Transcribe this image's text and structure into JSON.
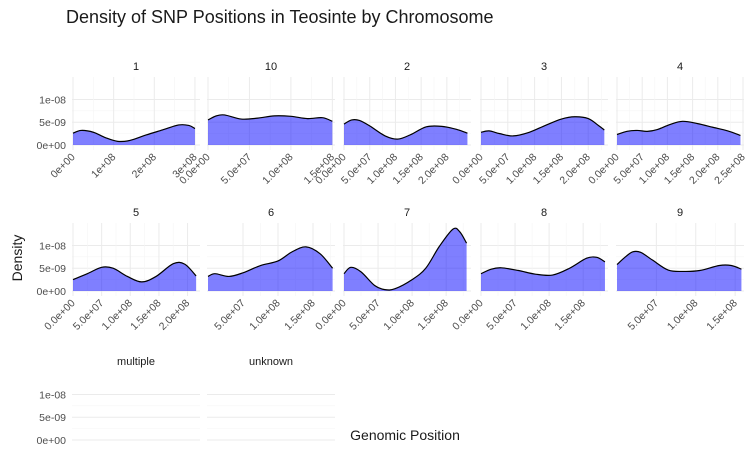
{
  "chart_data": {
    "type": "area",
    "title": "Density of SNP Positions in Teosinte by Chromosome",
    "xlabel": "Genomic Position",
    "ylabel": "Density",
    "ylim": [
      0,
      1.45e-08
    ],
    "y_ticks": [
      {
        "value": 0,
        "label": "0e+00"
      },
      {
        "value": 5e-09,
        "label": "5e-09"
      },
      {
        "value": 1e-08,
        "label": "1e-08"
      }
    ],
    "fill_color": "#0000ff",
    "line_color": "#000000",
    "grid": true,
    "legend": "none",
    "facets": [
      {
        "label": "1",
        "xlim": [
          0,
          310000000.0
        ],
        "x_ticks": [
          {
            "value": 0,
            "label": "0e+00"
          },
          {
            "value": 100000000.0,
            "label": "1e+08"
          },
          {
            "value": 200000000.0,
            "label": "2e+08"
          },
          {
            "value": 300000000.0,
            "label": "3e+08"
          }
        ],
        "points": [
          [
            0,
            2.6e-09
          ],
          [
            20000000.0,
            3.2e-09
          ],
          [
            50000000.0,
            2.8e-09
          ],
          [
            80000000.0,
            1.6e-09
          ],
          [
            110000000.0,
            8e-10
          ],
          [
            140000000.0,
            1e-09
          ],
          [
            180000000.0,
            2.2e-09
          ],
          [
            220000000.0,
            3.3e-09
          ],
          [
            260000000.0,
            4.4e-09
          ],
          [
            285000000.0,
            4.3e-09
          ],
          [
            300000000.0,
            3.6e-09
          ]
        ]
      },
      {
        "label": "10",
        "xlim": [
          0,
          152000000.0
        ],
        "x_ticks": [
          {
            "value": 0,
            "label": "0.0e+00"
          },
          {
            "value": 50000000.0,
            "label": "5.0e+07"
          },
          {
            "value": 100000000.0,
            "label": "1.0e+08"
          },
          {
            "value": 150000000.0,
            "label": "1.5e+08"
          }
        ],
        "points": [
          [
            0,
            5.5e-09
          ],
          [
            10000000.0,
            6.4e-09
          ],
          [
            20000000.0,
            6.6e-09
          ],
          [
            40000000.0,
            5.7e-09
          ],
          [
            60000000.0,
            5.9e-09
          ],
          [
            80000000.0,
            6.4e-09
          ],
          [
            100000000.0,
            6.3e-09
          ],
          [
            120000000.0,
            5.8e-09
          ],
          [
            138000000.0,
            6e-09
          ],
          [
            150000000.0,
            5.2e-09
          ]
        ]
      },
      {
        "label": "2",
        "xlim": [
          0,
          245000000.0
        ],
        "x_ticks": [
          {
            "value": 0,
            "label": "0.0e+00"
          },
          {
            "value": 50000000.0,
            "label": "5.0e+07"
          },
          {
            "value": 100000000.0,
            "label": "1.0e+08"
          },
          {
            "value": 150000000.0,
            "label": "1.5e+08"
          },
          {
            "value": 200000000.0,
            "label": "2.0e+08"
          }
        ],
        "points": [
          [
            0,
            4.6e-09
          ],
          [
            15000000.0,
            5.5e-09
          ],
          [
            30000000.0,
            5.4e-09
          ],
          [
            50000000.0,
            4.2e-09
          ],
          [
            80000000.0,
            2e-09
          ],
          [
            105000000.0,
            1.3e-09
          ],
          [
            130000000.0,
            2.3e-09
          ],
          [
            160000000.0,
            4e-09
          ],
          [
            190000000.0,
            4.1e-09
          ],
          [
            220000000.0,
            3.4e-09
          ],
          [
            240000000.0,
            2.6e-09
          ]
        ]
      },
      {
        "label": "3",
        "xlim": [
          0,
          235000000.0
        ],
        "x_ticks": [
          {
            "value": 0,
            "label": "0.0e+00"
          },
          {
            "value": 50000000.0,
            "label": "5.0e+07"
          },
          {
            "value": 100000000.0,
            "label": "1.0e+08"
          },
          {
            "value": 150000000.0,
            "label": "1.5e+08"
          },
          {
            "value": 200000000.0,
            "label": "2.0e+08"
          }
        ],
        "points": [
          [
            0,
            2.8e-09
          ],
          [
            15000000.0,
            3.1e-09
          ],
          [
            35000000.0,
            2.5e-09
          ],
          [
            60000000.0,
            2e-09
          ],
          [
            90000000.0,
            2.8e-09
          ],
          [
            120000000.0,
            4.3e-09
          ],
          [
            150000000.0,
            5.7e-09
          ],
          [
            175000000.0,
            6.2e-09
          ],
          [
            200000000.0,
            5.8e-09
          ],
          [
            220000000.0,
            4.2e-09
          ],
          [
            230000000.0,
            3.3e-09
          ]
        ]
      },
      {
        "label": "4",
        "xlim": [
          0,
          250000000.0
        ],
        "x_ticks": [
          {
            "value": 0,
            "label": "0.0e+00"
          },
          {
            "value": 50000000.0,
            "label": "5.0e+07"
          },
          {
            "value": 100000000.0,
            "label": "1.0e+08"
          },
          {
            "value": 150000000.0,
            "label": "1.5e+08"
          },
          {
            "value": 200000000.0,
            "label": "2.0e+08"
          },
          {
            "value": 250000000.0,
            "label": "2.5e+08"
          }
        ],
        "points": [
          [
            0,
            2.3e-09
          ],
          [
            20000000.0,
            3e-09
          ],
          [
            40000000.0,
            3.2e-09
          ],
          [
            60000000.0,
            3e-09
          ],
          [
            80000000.0,
            3.4e-09
          ],
          [
            105000000.0,
            4.5e-09
          ],
          [
            130000000.0,
            5.2e-09
          ],
          [
            160000000.0,
            4.7e-09
          ],
          [
            190000000.0,
            3.9e-09
          ],
          [
            220000000.0,
            3.1e-09
          ],
          [
            245000000.0,
            2.1e-09
          ]
        ]
      },
      {
        "label": "5",
        "xlim": [
          0,
          220000000.0
        ],
        "x_ticks": [
          {
            "value": 0,
            "label": "0.0e+00"
          },
          {
            "value": 50000000.0,
            "label": "5.0e+07"
          },
          {
            "value": 100000000.0,
            "label": "1.0e+08"
          },
          {
            "value": 150000000.0,
            "label": "1.5e+08"
          },
          {
            "value": 200000000.0,
            "label": "2.0e+08"
          }
        ],
        "points": [
          [
            0,
            2.5e-09
          ],
          [
            25000000.0,
            3.8e-09
          ],
          [
            50000000.0,
            5.2e-09
          ],
          [
            70000000.0,
            5e-09
          ],
          [
            95000000.0,
            3.2e-09
          ],
          [
            120000000.0,
            2e-09
          ],
          [
            145000000.0,
            3.2e-09
          ],
          [
            175000000.0,
            6e-09
          ],
          [
            195000000.0,
            5.9e-09
          ],
          [
            215000000.0,
            3.3e-09
          ]
        ]
      },
      {
        "label": "6",
        "xlim": [
          0,
          180000000.0
        ],
        "x_ticks": [
          {
            "value": 50000000.0,
            "label": "5.0e+07"
          },
          {
            "value": 100000000.0,
            "label": "1.0e+08"
          },
          {
            "value": 150000000.0,
            "label": "1.5e+08"
          }
        ],
        "points": [
          [
            0,
            3.2e-09
          ],
          [
            10000000.0,
            3.8e-09
          ],
          [
            30000000.0,
            3.2e-09
          ],
          [
            50000000.0,
            4e-09
          ],
          [
            75000000.0,
            5.6e-09
          ],
          [
            100000000.0,
            6.6e-09
          ],
          [
            120000000.0,
            8.6e-09
          ],
          [
            140000000.0,
            9.7e-09
          ],
          [
            160000000.0,
            8.2e-09
          ],
          [
            178000000.0,
            5e-09
          ]
        ]
      },
      {
        "label": "7",
        "xlim": [
          0,
          185000000.0
        ],
        "x_ticks": [
          {
            "value": 0,
            "label": "0.0e+00"
          },
          {
            "value": 50000000.0,
            "label": "5.0e+07"
          },
          {
            "value": 100000000.0,
            "label": "1.0e+08"
          },
          {
            "value": 150000000.0,
            "label": "1.5e+08"
          }
        ],
        "points": [
          [
            0,
            3.8e-09
          ],
          [
            10000000.0,
            5.2e-09
          ],
          [
            25000000.0,
            4.2e-09
          ],
          [
            45000000.0,
            1.2e-09
          ],
          [
            60000000.0,
            3e-10
          ],
          [
            75000000.0,
            5e-10
          ],
          [
            100000000.0,
            2.5e-09
          ],
          [
            120000000.0,
            5e-09
          ],
          [
            140000000.0,
            9.8e-09
          ],
          [
            160000000.0,
            1.36e-08
          ],
          [
            170000000.0,
            1.3e-08
          ],
          [
            180000000.0,
            1.05e-08
          ]
        ]
      },
      {
        "label": "8",
        "xlim": [
          0,
          185000000.0
        ],
        "x_ticks": [
          {
            "value": 0,
            "label": "0.0e+00"
          },
          {
            "value": 50000000.0,
            "label": "5.0e+07"
          },
          {
            "value": 100000000.0,
            "label": "1.0e+08"
          },
          {
            "value": 150000000.0,
            "label": "1.5e+08"
          }
        ],
        "points": [
          [
            0,
            3.8e-09
          ],
          [
            15000000.0,
            4.8e-09
          ],
          [
            30000000.0,
            5.1e-09
          ],
          [
            55000000.0,
            4.5e-09
          ],
          [
            80000000.0,
            3.7e-09
          ],
          [
            105000000.0,
            3.5e-09
          ],
          [
            130000000.0,
            5e-09
          ],
          [
            155000000.0,
            7.2e-09
          ],
          [
            170000000.0,
            7.4e-09
          ],
          [
            182000000.0,
            6.4e-09
          ]
        ]
      },
      {
        "label": "9",
        "xlim": [
          0,
          160000000.0
        ],
        "x_ticks": [
          {
            "value": 50000000.0,
            "label": "5.0e+07"
          },
          {
            "value": 100000000.0,
            "label": "1.0e+08"
          },
          {
            "value": 150000000.0,
            "label": "1.5e+08"
          }
        ],
        "points": [
          [
            0,
            5.8e-09
          ],
          [
            10000000.0,
            7.4e-09
          ],
          [
            20000000.0,
            8.6e-09
          ],
          [
            30000000.0,
            8.5e-09
          ],
          [
            45000000.0,
            6.8e-09
          ],
          [
            65000000.0,
            4.6e-09
          ],
          [
            85000000.0,
            4.3e-09
          ],
          [
            105000000.0,
            4.5e-09
          ],
          [
            130000000.0,
            5.6e-09
          ],
          [
            145000000.0,
            5.6e-09
          ],
          [
            158000000.0,
            4.8e-09
          ]
        ]
      },
      {
        "label": "multiple",
        "xlim": [
          0,
          1
        ],
        "x_ticks": [],
        "points": []
      },
      {
        "label": "unknown",
        "xlim": [
          0,
          1
        ],
        "x_ticks": [],
        "points": []
      }
    ]
  }
}
